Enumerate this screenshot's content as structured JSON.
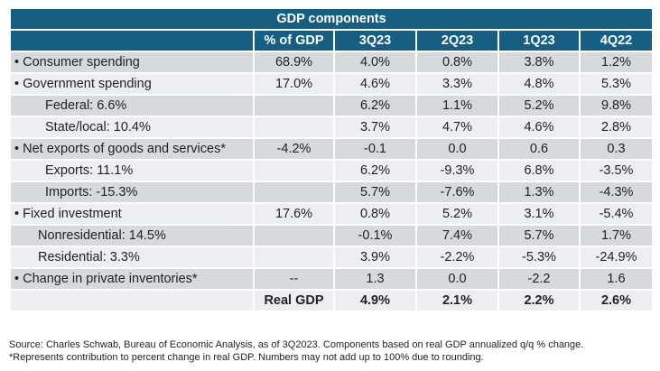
{
  "title": "GDP components",
  "columns": [
    "",
    "% of GDP",
    "3Q23",
    "2Q23",
    "1Q23",
    "4Q22"
  ],
  "rows": [
    {
      "label": "• Consumer spending",
      "share": "68.9%",
      "values": [
        "4.0%",
        "0.8%",
        "3.8%",
        "1.2%"
      ]
    },
    {
      "label": "• Government spending",
      "share": "17.0%",
      "values": [
        "4.6%",
        "3.3%",
        "4.8%",
        "5.3%"
      ]
    },
    {
      "label": "Federal: 6.6%",
      "share": "",
      "values": [
        "6.2%",
        "1.1%",
        "5.2%",
        "9.8%"
      ]
    },
    {
      "label": "State/local: 10.4%",
      "share": "",
      "values": [
        "3.7%",
        "4.7%",
        "4.6%",
        "2.8%"
      ]
    },
    {
      "label": "• Net exports of goods and services*",
      "share": "-4.2%",
      "values": [
        "-0.1",
        "0.0",
        "0.6",
        "0.3"
      ]
    },
    {
      "label": "Exports: 11.1%",
      "share": "",
      "values": [
        "6.2%",
        "-9.3%",
        "6.8%",
        "-3.5%"
      ]
    },
    {
      "label": "Imports: -15.3%",
      "share": "",
      "values": [
        "5.7%",
        "-7.6%",
        "1.3%",
        "-4.3%"
      ]
    },
    {
      "label": "• Fixed investment",
      "share": "17.6%",
      "values": [
        "0.8%",
        "5.2%",
        "3.1%",
        "-5.4%"
      ]
    },
    {
      "label": "Nonresidential: 14.5%",
      "share": "",
      "values": [
        "-0.1%",
        "7.4%",
        "5.7%",
        "1.7%"
      ]
    },
    {
      "label": "Residential: 3.3%",
      "share": "",
      "values": [
        "3.9%",
        "-2.2%",
        "-5.3%",
        "-24.9%"
      ]
    },
    {
      "label": "• Change in private inventories*",
      "share": "--",
      "values": [
        "1.3",
        "0.0",
        "-2.2",
        "1.6"
      ]
    },
    {
      "label": "",
      "share": "Real GDP",
      "values": [
        "4.9%",
        "2.1%",
        "2.2%",
        "2.6%"
      ]
    }
  ],
  "footnotes": [
    "Source: Charles Schwab, Bureau of Economic Analysis, as of 3Q2023. Components based on real GDP annualized q/q % change.",
    "*Represents contribution to percent change in real GDP. Numbers may not add up to 100% due to rounding."
  ],
  "colors": {
    "header": "#165f82",
    "row_dark": "#d6d9de",
    "row_light": "#eceef1"
  }
}
